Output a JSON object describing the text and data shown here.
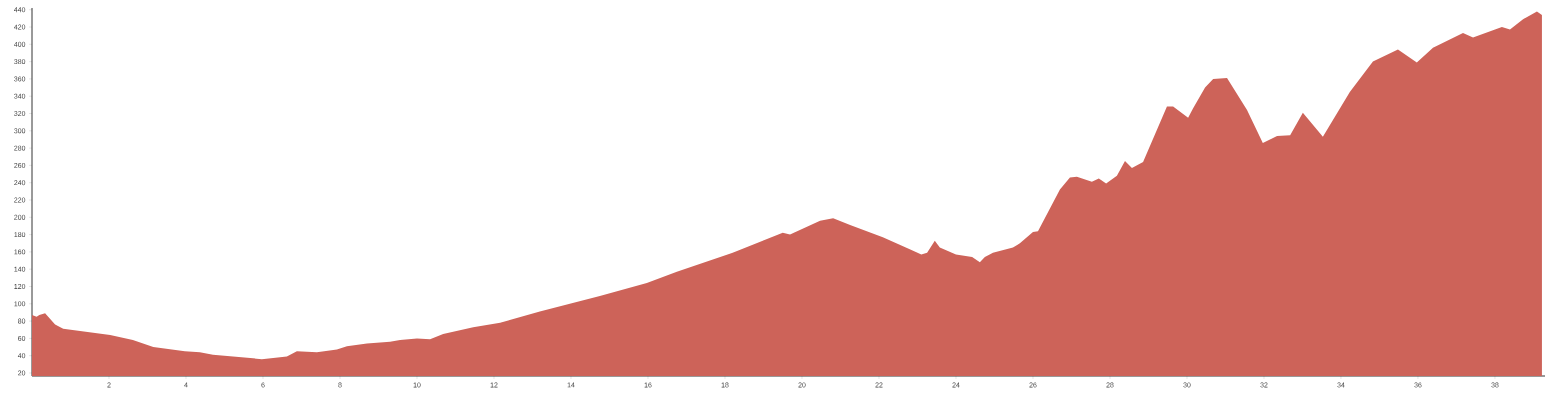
{
  "chart_data": {
    "type": "area",
    "color": "#cd6359",
    "x": [
      0,
      0.12,
      0.19,
      0.34,
      0.6,
      0.81,
      2.03,
      2.62,
      3.15,
      3.97,
      4.36,
      4.7,
      5.97,
      6.62,
      6.88,
      7.4,
      7.92,
      8.18,
      8.7,
      9.3,
      9.56,
      10.0,
      10.34,
      10.68,
      11.46,
      12.16,
      13.19,
      13.97,
      14.75,
      15.97,
      16.75,
      18.2,
      19.5,
      19.69,
      20.47,
      20.81,
      21.25,
      22.1,
      22.8,
      23.1,
      23.25,
      23.45,
      23.58,
      24.0,
      24.42,
      24.62,
      24.75,
      24.96,
      25.48,
      25.66,
      26.0,
      26.13,
      26.7,
      26.96,
      27.14,
      27.53,
      27.71,
      27.9,
      28.18,
      28.39,
      28.57,
      28.86,
      29.48,
      29.64,
      30.03,
      30.16,
      30.47,
      30.68,
      31.04,
      31.56,
      31.97,
      32.34,
      32.68,
      33.01,
      33.53,
      34.23,
      34.83,
      35.48,
      35.97,
      36.39,
      37.17,
      37.43,
      38.18,
      38.39,
      38.73,
      39.09,
      39.22
    ],
    "values": [
      87,
      85,
      87,
      89,
      76,
      71,
      64,
      58,
      50,
      45,
      44,
      41,
      36,
      39,
      45,
      44,
      47,
      51,
      54,
      56,
      58,
      60,
      59,
      65,
      73,
      78,
      91,
      100,
      109,
      124,
      137,
      159,
      182,
      180,
      196,
      199,
      191,
      177,
      163,
      157,
      159,
      173,
      165,
      157,
      154,
      148,
      154,
      159,
      165,
      170,
      183,
      184,
      232,
      246,
      247,
      241,
      245,
      239,
      248,
      265,
      257,
      264,
      328,
      328,
      315,
      326,
      350,
      360,
      361,
      324,
      286,
      294,
      295,
      321,
      293,
      345,
      380,
      394,
      379,
      396,
      413,
      408,
      420,
      417,
      429,
      438,
      434
    ],
    "xlim": [
      0,
      39.3
    ],
    "ylim": [
      16.5,
      442
    ],
    "xticks": [
      2,
      4,
      6,
      8,
      10,
      12,
      14,
      16,
      18,
      20,
      22,
      24,
      26,
      28,
      30,
      32,
      34,
      36,
      38
    ],
    "yticks": [
      20,
      40,
      60,
      80,
      100,
      120,
      140,
      160,
      180,
      200,
      220,
      240,
      260,
      280,
      300,
      320,
      340,
      360,
      380,
      400,
      420,
      440
    ],
    "grid": false
  }
}
